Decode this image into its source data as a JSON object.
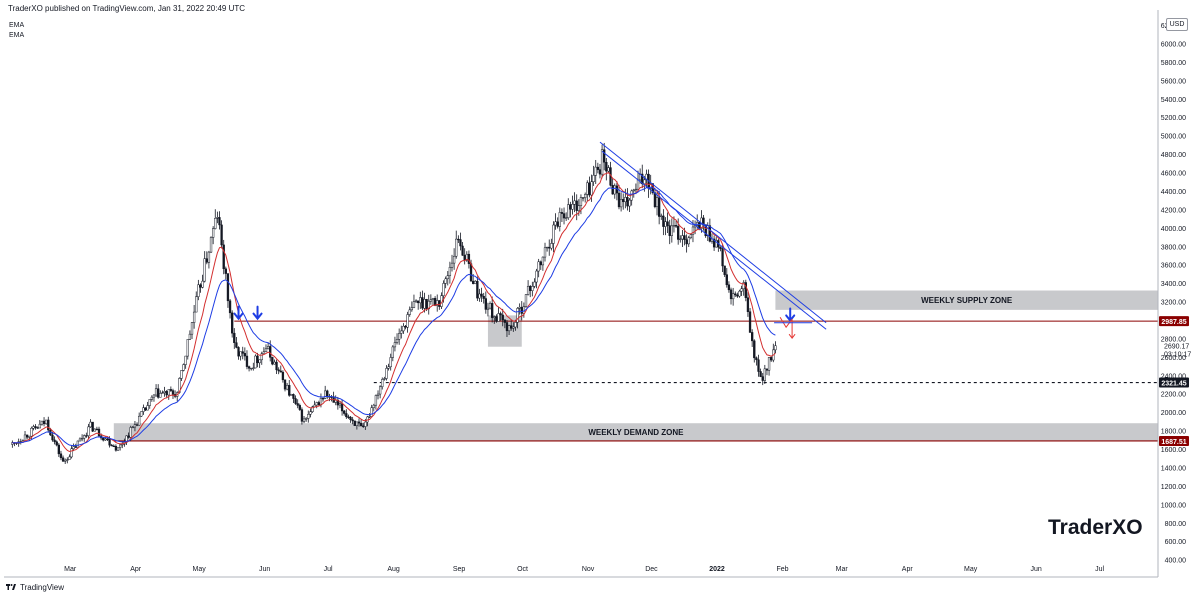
{
  "header": {
    "publisher_line": "TraderXO published on TradingView.com, Jan 31, 2022 20:49 UTC"
  },
  "indicators": [
    "EMA",
    "EMA"
  ],
  "currency": "USD",
  "watermark": "TraderXO",
  "footer": {
    "brand": "TradingView"
  },
  "colors": {
    "candle": "#131722",
    "ema_fast": "#d32f2f",
    "ema_slow": "#1e3de4",
    "zone": "#c8c9cc",
    "level_line": "#8b0000",
    "trendline": "#1e3de4",
    "arrow_blue": "#1e3de4",
    "arrow_red": "#e53935"
  },
  "chart_data": {
    "type": "candlestick",
    "instrument_hint": "ETH/USD",
    "ylim": [
      320,
      6320
    ],
    "y_ticks": [
      400,
      600,
      800,
      1000,
      1200,
      1400,
      1600,
      1800,
      2000,
      2200,
      2400,
      2600,
      2800,
      3000,
      3200,
      3400,
      3600,
      3800,
      4000,
      4200,
      4400,
      4600,
      4800,
      5000,
      5200,
      5400,
      5600,
      5800,
      6000,
      6200
    ],
    "y_tick_labels": [
      "400.00",
      "600.00",
      "800.00",
      "1000.00",
      "1200.00",
      "1400.00",
      "1600.00",
      "1800.00",
      "2000.00",
      "2200.00",
      "2400.00",
      "2600.00",
      "2800.00",
      "3000.00",
      "3200.00",
      "3400.00",
      "3600.00",
      "3800.00",
      "4000.00",
      "4200.00",
      "4400.00",
      "4600.00",
      "4800.00",
      "5000.00",
      "5200.00",
      "5400.00",
      "5600.00",
      "5800.00",
      "6000.00",
      "6200.00"
    ],
    "x_labels": [
      "Mar",
      "Apr",
      "May",
      "Jun",
      "Jul",
      "Aug",
      "Sep",
      "Oct",
      "Nov",
      "Dec",
      "2022",
      "Feb",
      "Mar",
      "Apr",
      "May",
      "Jun",
      "Jul"
    ],
    "x_label_dates": [
      "2021-03-01",
      "2021-04-01",
      "2021-05-01",
      "2021-06-01",
      "2021-07-01",
      "2021-08-01",
      "2021-09-01",
      "2021-10-01",
      "2021-11-01",
      "2021-12-01",
      "2022-01-01",
      "2022-02-01",
      "2022-03-01",
      "2022-04-01",
      "2022-05-01",
      "2022-06-01",
      "2022-07-01"
    ],
    "price_path": [
      {
        "date": "2021-02-04",
        "close": 1650
      },
      {
        "date": "2021-02-20",
        "close": 1900
      },
      {
        "date": "2021-02-28",
        "close": 1450
      },
      {
        "date": "2021-03-13",
        "close": 1850
      },
      {
        "date": "2021-03-26",
        "close": 1600
      },
      {
        "date": "2021-04-13",
        "close": 2200
      },
      {
        "date": "2021-04-23",
        "close": 2200
      },
      {
        "date": "2021-05-03",
        "close": 3300
      },
      {
        "date": "2021-05-12",
        "close": 4150
      },
      {
        "date": "2021-05-20",
        "close": 2700
      },
      {
        "date": "2021-05-28",
        "close": 2500
      },
      {
        "date": "2021-06-04",
        "close": 2700
      },
      {
        "date": "2021-06-22",
        "close": 1900
      },
      {
        "date": "2021-07-02",
        "close": 2200
      },
      {
        "date": "2021-07-20",
        "close": 1800
      },
      {
        "date": "2021-08-05",
        "close": 2800
      },
      {
        "date": "2021-08-14",
        "close": 3200
      },
      {
        "date": "2021-08-25",
        "close": 3200
      },
      {
        "date": "2021-09-03",
        "close": 3900
      },
      {
        "date": "2021-09-12",
        "close": 3300
      },
      {
        "date": "2021-09-20",
        "close": 3050
      },
      {
        "date": "2021-09-28",
        "close": 2900
      },
      {
        "date": "2021-10-10",
        "close": 3500
      },
      {
        "date": "2021-10-21",
        "close": 4150
      },
      {
        "date": "2021-11-01",
        "close": 4300
      },
      {
        "date": "2021-11-10",
        "close": 4750
      },
      {
        "date": "2021-11-20",
        "close": 4200
      },
      {
        "date": "2021-12-01",
        "close": 4600
      },
      {
        "date": "2021-12-10",
        "close": 4000
      },
      {
        "date": "2021-12-20",
        "close": 3900
      },
      {
        "date": "2021-12-27",
        "close": 4050
      },
      {
        "date": "2022-01-04",
        "close": 3800
      },
      {
        "date": "2022-01-10",
        "close": 3200
      },
      {
        "date": "2022-01-16",
        "close": 3350
      },
      {
        "date": "2022-01-21",
        "close": 2600
      },
      {
        "date": "2022-01-24",
        "close": 2350
      },
      {
        "date": "2022-01-31",
        "close": 2690
      }
    ],
    "series": [
      {
        "name": "EMA",
        "color": "#d32f2f"
      },
      {
        "name": "EMA",
        "color": "#1e3de4"
      }
    ],
    "zones": [
      {
        "label": "WEEKLY SUPPLY ZONE",
        "low": 3110,
        "high": 3320,
        "from": "2022-01-31",
        "to": "2022-07-31"
      },
      {
        "label": "WEEKLY DEMAND ZONE",
        "low": 1690,
        "high": 1880,
        "from": "2021-03-24",
        "to": "2022-07-31"
      }
    ],
    "consolidation_box": {
      "from": "2021-09-17",
      "to": "2021-10-03",
      "low": 2710,
      "high": 3050
    },
    "levels": [
      {
        "value": 2987.85,
        "label": "2987.85",
        "style": "solid",
        "color": "#8b0000"
      },
      {
        "value": 2321.45,
        "label": "2321.45",
        "style": "dashed",
        "color": "#131722"
      },
      {
        "value": 1687.51,
        "label": "1687.51",
        "style": "solid",
        "color": "#8b0000"
      }
    ],
    "last_price": {
      "value": 2690.17,
      "label": "2690.17",
      "countdown": "03:10:17"
    },
    "trendlines": [
      {
        "from": {
          "date": "2021-11-09",
          "value": 4930
        },
        "to": {
          "date": "2022-02-24",
          "value": 2970
        }
      },
      {
        "from": {
          "date": "2021-11-10",
          "value": 4830
        },
        "to": {
          "date": "2022-02-24",
          "value": 2900
        }
      }
    ],
    "markers": [
      {
        "type": "down-arrow",
        "date": "2021-05-22",
        "value": 3080,
        "color": "#1e3de4"
      },
      {
        "type": "down-arrow",
        "date": "2021-05-31",
        "value": 3080,
        "color": "#1e3de4"
      },
      {
        "type": "down-arrow",
        "date": "2022-02-07",
        "value": 3060,
        "color": "#1e3de4"
      },
      {
        "type": "return-arrow",
        "date": "2022-02-06",
        "value": 2900,
        "color": "#e53935"
      }
    ],
    "grid": false,
    "legend": "none"
  }
}
